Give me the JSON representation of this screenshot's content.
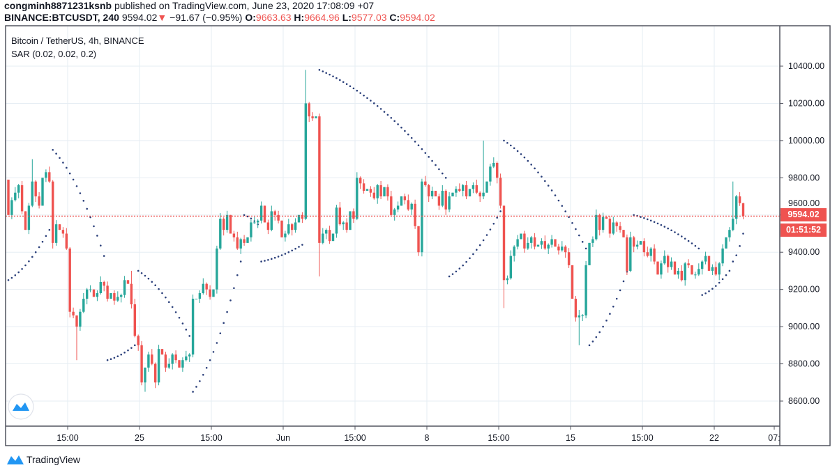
{
  "header": {
    "author": "congminh8871231ksnb",
    "published": "published on TradingView.com, June 23, 2020 17:08:09 +07",
    "symbol": "BINANCE:BTCUSDT, 240",
    "last": "9594.02",
    "change": "−91.67 (−0.95%)",
    "o_label": "O:",
    "o": "9663.63",
    "h_label": "H:",
    "h": "9664.96",
    "l_label": "L:",
    "l": "9577.03",
    "c_label": "C:",
    "c": "9594.02"
  },
  "legend": {
    "title": "Bitcoin / TetherUS, 4h, BINANCE",
    "indicator": "SAR (0.02, 0.02, 0.2)"
  },
  "price_tag": "9594.02",
  "countdown": "01:51:52",
  "footer": {
    "brand": "TradingView"
  },
  "colors": {
    "up": "#26a69a",
    "down": "#ef5350",
    "sar": "#2a3f7a",
    "grid": "#e6edf3"
  },
  "chart_data": {
    "type": "candlestick",
    "title": "Bitcoin / TetherUS, 4h, BINANCE",
    "ylim": [
      8500,
      10500
    ],
    "yticks": [
      "10400.00",
      "10200.00",
      "10000.00",
      "9800.00",
      "9600.00",
      "9400.00",
      "9200.00",
      "9000.00",
      "8800.00",
      "8600.00"
    ],
    "ytick_values": [
      10400,
      10200,
      10000,
      9800,
      9600,
      9400,
      9200,
      9000,
      8800,
      8600
    ],
    "xticks": [
      "15:00",
      "25",
      "15:00",
      "Jun",
      "15:00",
      "8",
      "15:00",
      "15",
      "15:00",
      "22",
      "07:"
    ],
    "current_price": 9594.02,
    "first_open": 9790,
    "default_wick": 30,
    "closes": [
      9600,
      9680,
      9720,
      9760,
      9620,
      9520,
      9650,
      9780,
      9700,
      9650,
      9800,
      9830,
      9780,
      9450,
      9550,
      9520,
      9500,
      9420,
      9080,
      9060,
      9000,
      9080,
      9150,
      9200,
      9200,
      9160,
      9180,
      9240,
      9220,
      9150,
      9180,
      9140,
      9160,
      9170,
      9250,
      9230,
      9120,
      8950,
      8900,
      8700,
      8780,
      8850,
      8800,
      8700,
      8880,
      8850,
      8780,
      8800,
      8850,
      8820,
      8780,
      8820,
      8840,
      8850,
      9150,
      9150,
      9180,
      9230,
      9200,
      9160,
      9200,
      9420,
      9580,
      9520,
      9600,
      9500,
      9480,
      9420,
      9470,
      9450,
      9480,
      9560,
      9560,
      9570,
      9650,
      9560,
      9520,
      9620,
      9600,
      9570,
      9480,
      9500,
      9550,
      9520,
      9560,
      9600,
      9580,
      10200,
      10130,
      10120,
      10130,
      9450,
      9500,
      9520,
      9460,
      9500,
      9640,
      9550,
      9560,
      9520,
      9620,
      9580,
      9800,
      9770,
      9730,
      9740,
      9720,
      9690,
      9760,
      9700,
      9750,
      9700,
      9600,
      9630,
      9650,
      9700,
      9680,
      9630,
      9660,
      9540,
      9400,
      9780,
      9760,
      9700,
      9730,
      9700,
      9650,
      9730,
      9630,
      9700,
      9720,
      9740,
      9730,
      9760,
      9700,
      9740,
      9760,
      9720,
      9700,
      9720,
      9780,
      9860,
      9880,
      9800,
      9650,
      9250,
      9260,
      9380,
      9430,
      9470,
      9500,
      9420,
      9450,
      9480,
      9430,
      9440,
      9460,
      9420,
      9440,
      9470,
      9430,
      9410,
      9430,
      9400,
      9330,
      9150,
      9050,
      9060,
      9060,
      9330,
      9450,
      9470,
      9600,
      9520,
      9590,
      9580,
      9500,
      9560,
      9540,
      9520,
      9480,
      9300,
      9480,
      9430,
      9440,
      9460,
      9400,
      9380,
      9420,
      9350,
      9280,
      9340,
      9380,
      9320,
      9350,
      9280,
      9300,
      9250,
      9340,
      9330,
      9280,
      9280,
      9310,
      9350,
      9380,
      9300,
      9320,
      9280,
      9340,
      9420,
      9480,
      9520,
      9580,
      9700,
      9663.63,
      9594.02
    ],
    "wick_extremes": [
      {
        "i": 7,
        "high": 9900
      },
      {
        "i": 20,
        "low": 8820
      },
      {
        "i": 36,
        "high": 9300
      },
      {
        "i": 40,
        "low": 8650
      },
      {
        "i": 87,
        "high": 10380
      },
      {
        "i": 91,
        "low": 9270
      },
      {
        "i": 120,
        "low": 9380
      },
      {
        "i": 139,
        "high": 10000
      },
      {
        "i": 145,
        "low": 9100
      },
      {
        "i": 167,
        "low": 8900
      },
      {
        "i": 212,
        "high": 9780
      },
      {
        "i": 215,
        "high": 9664.96,
        "low": 9577.03
      }
    ],
    "sar_segments": [
      {
        "from": 0,
        "to": 12,
        "start": 9250,
        "end": 9520
      },
      {
        "from": 13,
        "to": 28,
        "start": 9950,
        "end": 9380
      },
      {
        "from": 29,
        "to": 37,
        "start": 8820,
        "end": 8900
      },
      {
        "from": 38,
        "to": 53,
        "start": 9300,
        "end": 8950
      },
      {
        "from": 54,
        "to": 68,
        "start": 8650,
        "end": 9350
      },
      {
        "from": 69,
        "to": 73,
        "start": 9600,
        "end": 9550
      },
      {
        "from": 74,
        "to": 86,
        "start": 9350,
        "end": 9440
      },
      {
        "from": 91,
        "to": 128,
        "start": 10380,
        "end": 9800
      },
      {
        "from": 129,
        "to": 144,
        "start": 9270,
        "end": 9620
      },
      {
        "from": 145,
        "to": 169,
        "start": 10000,
        "end": 9420
      },
      {
        "from": 170,
        "to": 182,
        "start": 8900,
        "end": 9350
      },
      {
        "from": 183,
        "to": 202,
        "start": 9600,
        "end": 9420
      },
      {
        "from": 203,
        "to": 211,
        "start": 9170,
        "end": 9300
      },
      {
        "from": 212,
        "to": 215,
        "start": 9350,
        "end": 9500
      }
    ]
  }
}
